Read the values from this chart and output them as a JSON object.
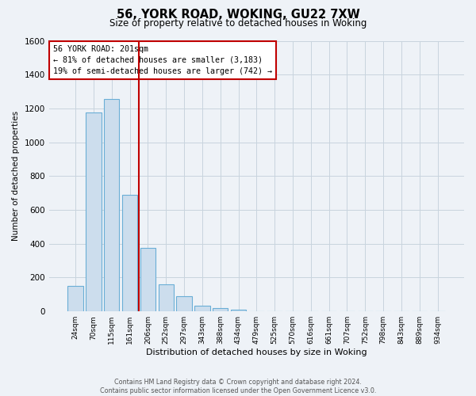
{
  "title": "56, YORK ROAD, WOKING, GU22 7XW",
  "subtitle": "Size of property relative to detached houses in Woking",
  "xlabel": "Distribution of detached houses by size in Woking",
  "ylabel": "Number of detached properties",
  "bar_labels": [
    "24sqm",
    "70sqm",
    "115sqm",
    "161sqm",
    "206sqm",
    "252sqm",
    "297sqm",
    "343sqm",
    "388sqm",
    "434sqm",
    "479sqm",
    "525sqm",
    "570sqm",
    "616sqm",
    "661sqm",
    "707sqm",
    "752sqm",
    "798sqm",
    "843sqm",
    "889sqm",
    "934sqm"
  ],
  "bar_values": [
    152,
    1175,
    1255,
    690,
    375,
    162,
    90,
    35,
    20,
    10,
    0,
    0,
    0,
    0,
    0,
    0,
    0,
    0,
    0,
    0,
    0
  ],
  "bar_color": "#ccdded",
  "bar_edge_color": "#6aaed6",
  "grid_color": "#c8d4de",
  "background_color": "#eef2f7",
  "plot_bg_color": "#eef2f7",
  "vline_color": "#c00000",
  "annotation_text": "56 YORK ROAD: 201sqm\n← 81% of detached houses are smaller (3,183)\n19% of semi-detached houses are larger (742) →",
  "annotation_box_color": "#ffffff",
  "annotation_box_edge_color": "#c00000",
  "footnote": "Contains HM Land Registry data © Crown copyright and database right 2024.\nContains public sector information licensed under the Open Government Licence v3.0.",
  "ylim": [
    0,
    1600
  ],
  "yticks": [
    0,
    200,
    400,
    600,
    800,
    1000,
    1200,
    1400,
    1600
  ],
  "vline_bar_index": 4
}
